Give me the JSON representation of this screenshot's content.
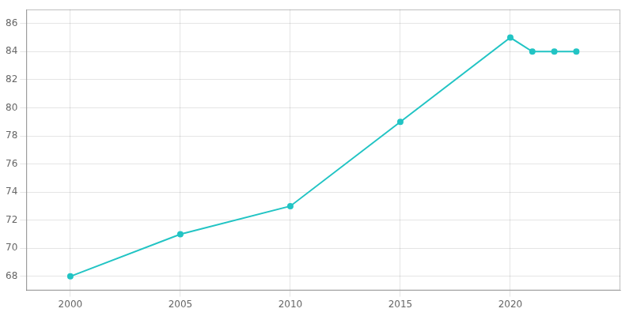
{
  "chart_data": {
    "type": "line",
    "x": [
      2000,
      2005,
      2010,
      2015,
      2020,
      2021,
      2022,
      2023
    ],
    "values": [
      68,
      71,
      73,
      79,
      85,
      84,
      84,
      84
    ],
    "color": "#22c4c4",
    "marker": "circle",
    "xlim": [
      1998,
      2025
    ],
    "xticks": [
      2000,
      2005,
      2010,
      2015,
      2020
    ],
    "ylim": [
      67,
      87
    ],
    "yticks": [
      68,
      70,
      72,
      74,
      76,
      78,
      80,
      82,
      84,
      86
    ],
    "grid": true
  }
}
